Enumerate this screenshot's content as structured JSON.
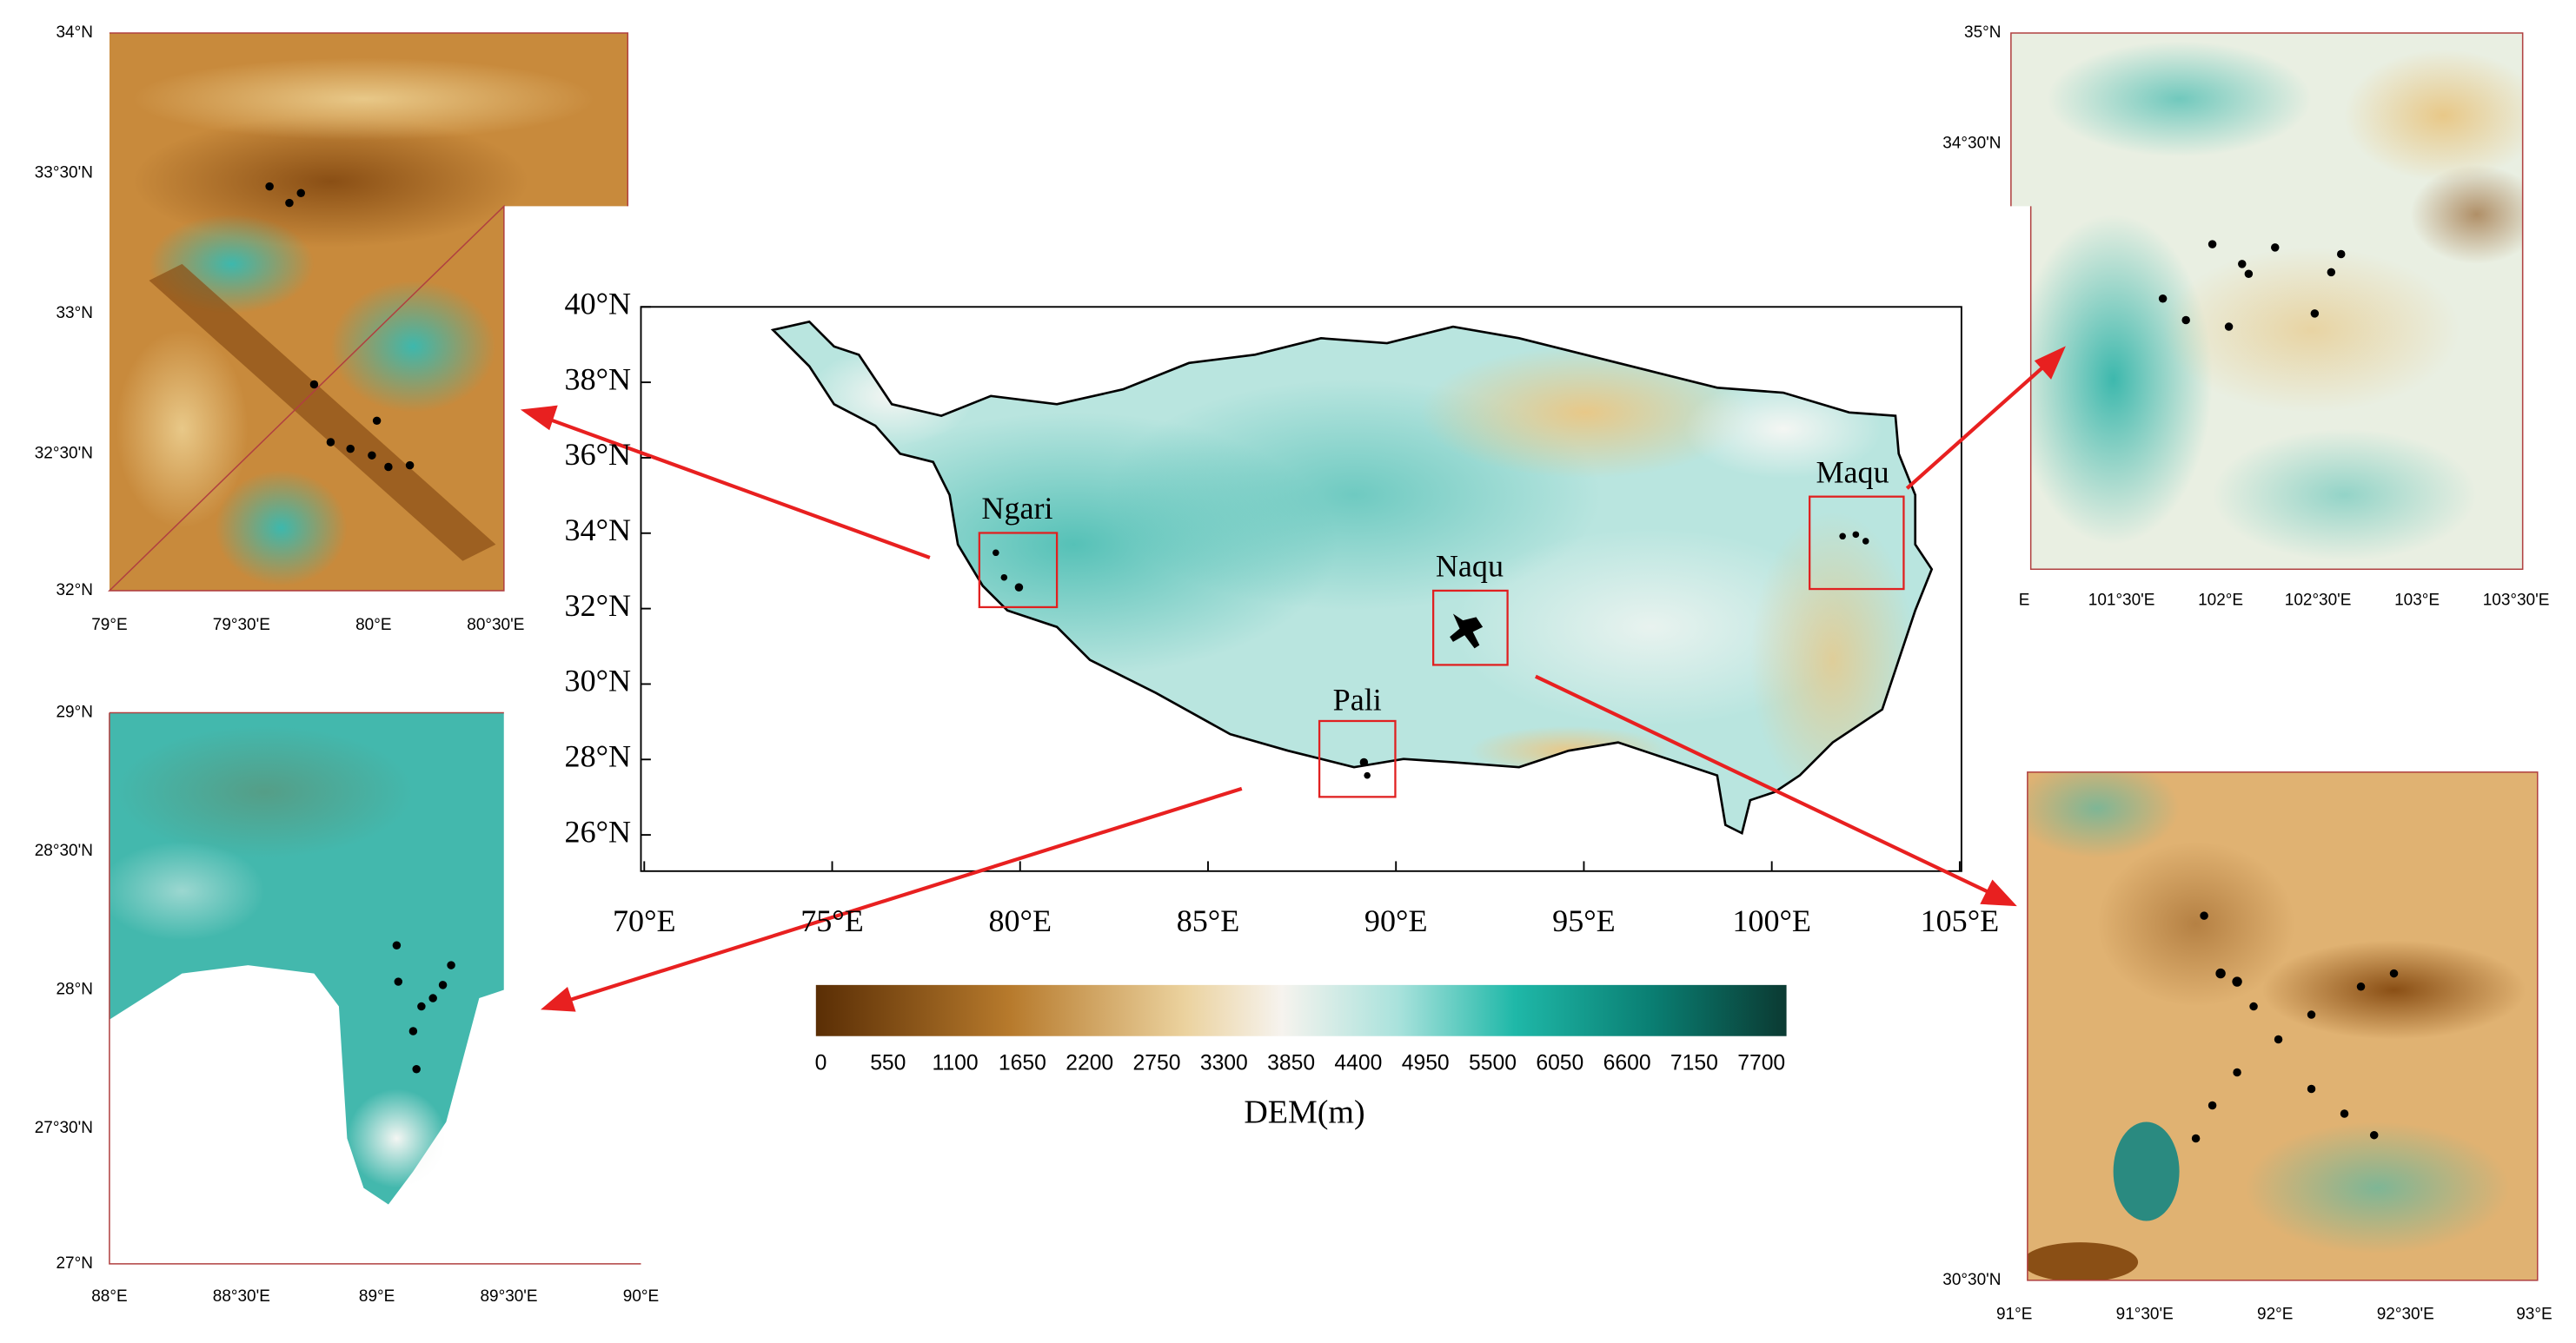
{
  "main_map": {
    "lat_labels": [
      "40°N",
      "38°N",
      "36°N",
      "34°N",
      "32°N",
      "30°N",
      "28°N",
      "26°N"
    ],
    "lon_labels": [
      "70°E",
      "75°E",
      "80°E",
      "85°E",
      "90°E",
      "95°E",
      "100°E",
      "105°E"
    ],
    "regions": [
      "Ngari",
      "Naqu",
      "Pali",
      "Maqu"
    ]
  },
  "colorbar": {
    "ticks": [
      0,
      550,
      1100,
      1650,
      2200,
      2750,
      3300,
      3850,
      4400,
      4950,
      5500,
      6050,
      6600,
      7150,
      7700
    ],
    "label": "DEM(m)"
  },
  "insets": [
    {
      "lat_labels": [
        "34°N",
        "33°30'N",
        "33°N",
        "32°30'N",
        "32°N"
      ],
      "lon_labels": [
        "79°E",
        "79°30'E",
        "80°E",
        "80°30'E"
      ]
    },
    {
      "lat_labels": [
        "35°N",
        "34°30'N"
      ],
      "lon_labels": [
        "E",
        "101°30'E",
        "102°E",
        "102°30'E",
        "103°E",
        "103°30'E"
      ]
    },
    {
      "lat_labels": [
        "29°N",
        "28°30'N",
        "28°N",
        "27°30'N",
        "27°N"
      ],
      "lon_labels": [
        "88°E",
        "88°30'E",
        "89°E",
        "89°30'E",
        "90°E"
      ]
    },
    {
      "lat_labels": [
        "30°30'N"
      ],
      "lon_labels": [
        "91°E",
        "91°30'E",
        "92°E",
        "92°30'E",
        "93°E"
      ]
    }
  ]
}
